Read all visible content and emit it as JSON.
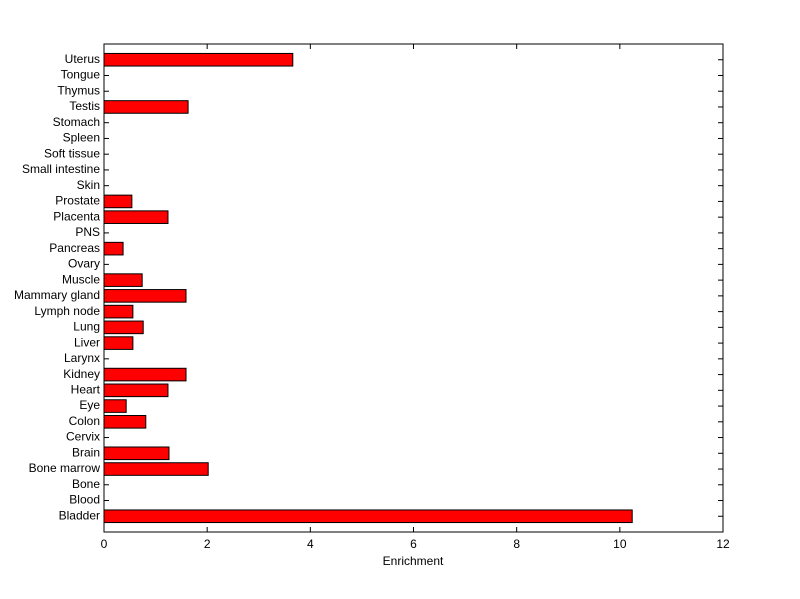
{
  "chart_data": {
    "type": "barh",
    "xlabel": "Enrichment",
    "categories": [
      "Bladder",
      "Blood",
      "Bone",
      "Bone marrow",
      "Brain",
      "Cervix",
      "Colon",
      "Eye",
      "Heart",
      "Kidney",
      "Larynx",
      "Liver",
      "Lung",
      "Lymph node",
      "Mammary gland",
      "Muscle",
      "Ovary",
      "Pancreas",
      "PNS",
      "Placenta",
      "Prostate",
      "Skin",
      "Small intestine",
      "Soft tissue",
      "Spleen",
      "Stomach",
      "Testis",
      "Thymus",
      "Tongue",
      "Uterus"
    ],
    "values": [
      10.24,
      0,
      0,
      2.02,
      1.26,
      0,
      0.81,
      0.43,
      1.24,
      1.59,
      0,
      0.56,
      0.76,
      0.56,
      1.59,
      0.74,
      0,
      0.37,
      0,
      1.24,
      0.54,
      0,
      0,
      0,
      0,
      0,
      1.63,
      0,
      0,
      3.66
    ],
    "color": "#ff0000",
    "xlim": [
      0,
      12
    ],
    "xticks": [
      0,
      2,
      4,
      6,
      8,
      10,
      12
    ]
  }
}
